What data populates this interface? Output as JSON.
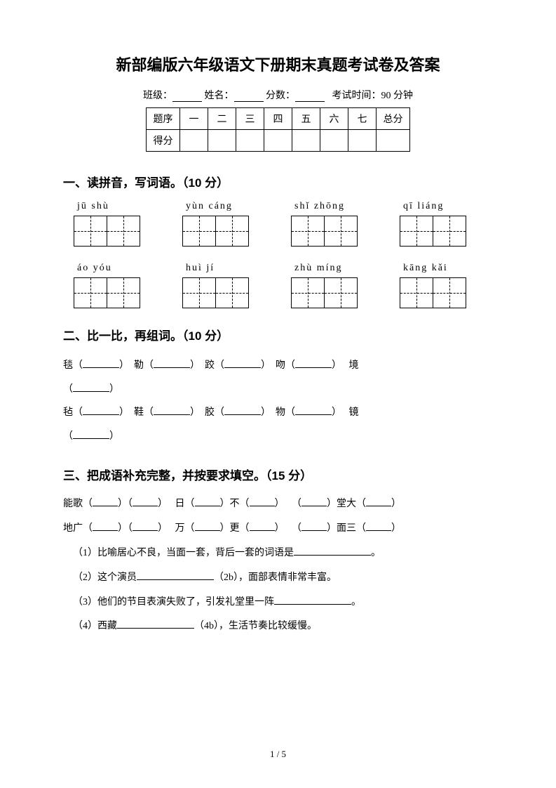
{
  "title": "新部编版六年级语文下册期末真题考试卷及答案",
  "info": {
    "class_label": "班级：",
    "name_label": "姓名：",
    "score_label": "分数：",
    "time_label": "考试时间：90 分钟"
  },
  "scoreTable": {
    "row1_h": "题序",
    "cols": [
      "一",
      "二",
      "三",
      "四",
      "五",
      "六",
      "七"
    ],
    "total": "总分",
    "row2_h": "得分"
  },
  "section1": {
    "title": "一、读拼音，写词语。（10 分）",
    "rows": [
      [
        "jū  shù",
        "yùn cáng",
        "shǐ  zhōng",
        "qī  liáng"
      ],
      [
        "áo  yóu",
        "huì  jí",
        "zhù  míng",
        "kāng kǎi"
      ]
    ]
  },
  "section2": {
    "title": "二、比一比，再组词。（10 分）",
    "pairs": [
      [
        "毯",
        "勒",
        "跤",
        "吻",
        "境"
      ],
      [
        "毡",
        "鞋",
        "胶",
        "物",
        "镜"
      ]
    ]
  },
  "section3": {
    "title": "三、把成语补充完整，并按要求填空。（15 分）",
    "line1": [
      "能歌",
      "日",
      "不",
      "堂大"
    ],
    "line2": [
      "地广",
      "万",
      "更",
      "面三"
    ],
    "subs": [
      "（1）比喻居心不良，当面一套，背后一套的词语是",
      "（2）这个演员",
      "（2b），面部表情非常丰富。",
      "（3）他们的节目表演失败了，引发礼堂里一阵",
      "（4）西藏",
      "（4b），生活节奏比较缓慢。"
    ]
  },
  "footer": "1 / 5"
}
